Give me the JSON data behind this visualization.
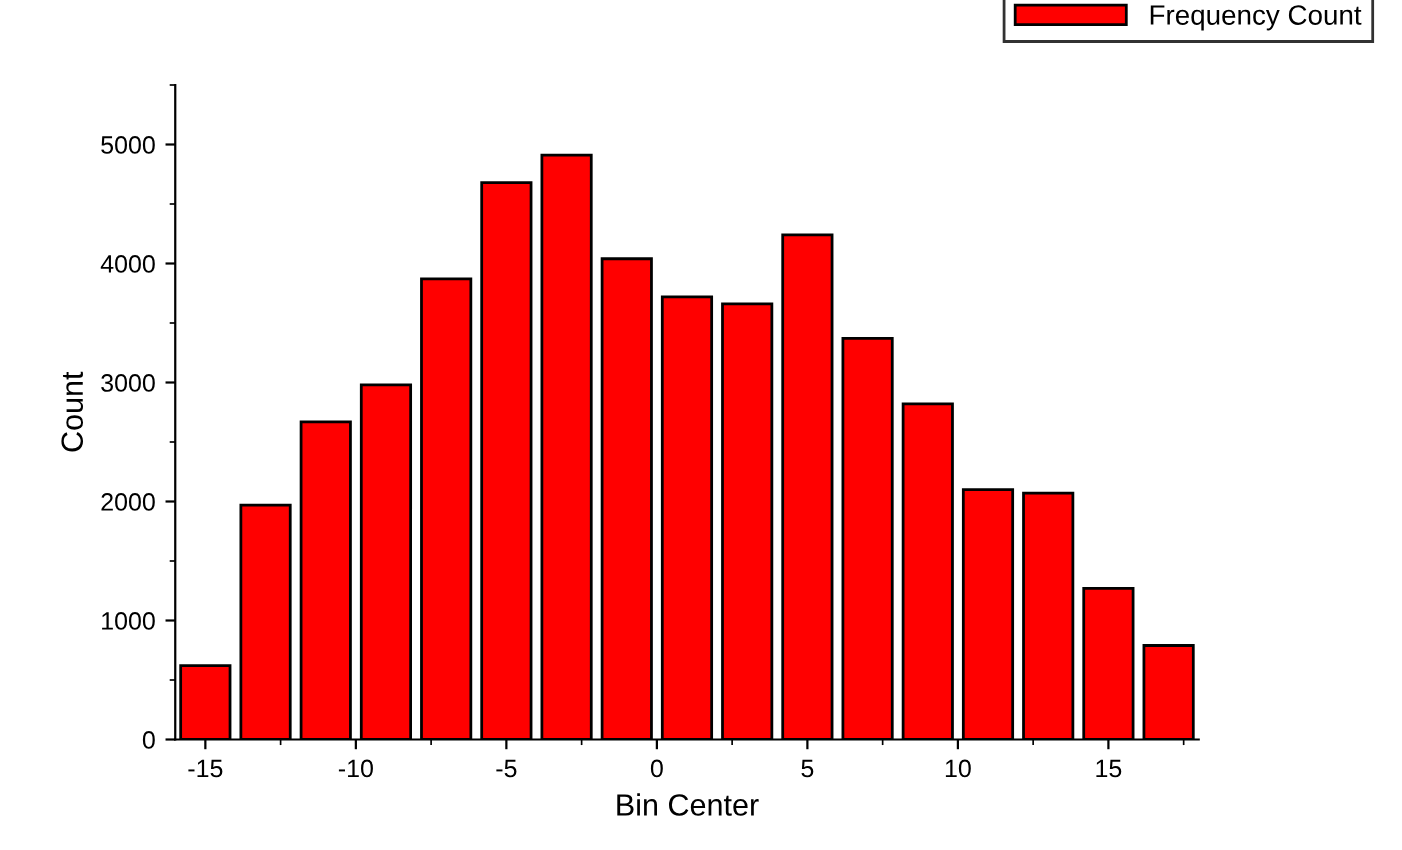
{
  "chart_data": {
    "type": "histogram",
    "xlabel": "Bin Center",
    "ylabel": "Count",
    "bins": [
      -16,
      -14,
      -12,
      -10,
      -8,
      -6,
      -4,
      -2,
      0,
      2,
      4,
      6,
      8,
      10,
      12,
      14,
      16,
      18
    ],
    "series": [
      {
        "name": "Frequency Count",
        "color": "#ff0000",
        "values": [
          620,
          1970,
          2670,
          2980,
          3870,
          4680,
          4910,
          4040,
          3720,
          3660,
          4240,
          3370,
          2820,
          2100,
          2070,
          1270,
          790
        ]
      }
    ],
    "xlim": [
      -16,
      18
    ],
    "xticks": [
      -15,
      -10,
      -5,
      0,
      5,
      10,
      15
    ],
    "ylim": [
      0,
      5500
    ],
    "yticks": [
      0,
      1000,
      2000,
      3000,
      4000,
      5000
    ],
    "grid": false,
    "legend": "top right"
  }
}
